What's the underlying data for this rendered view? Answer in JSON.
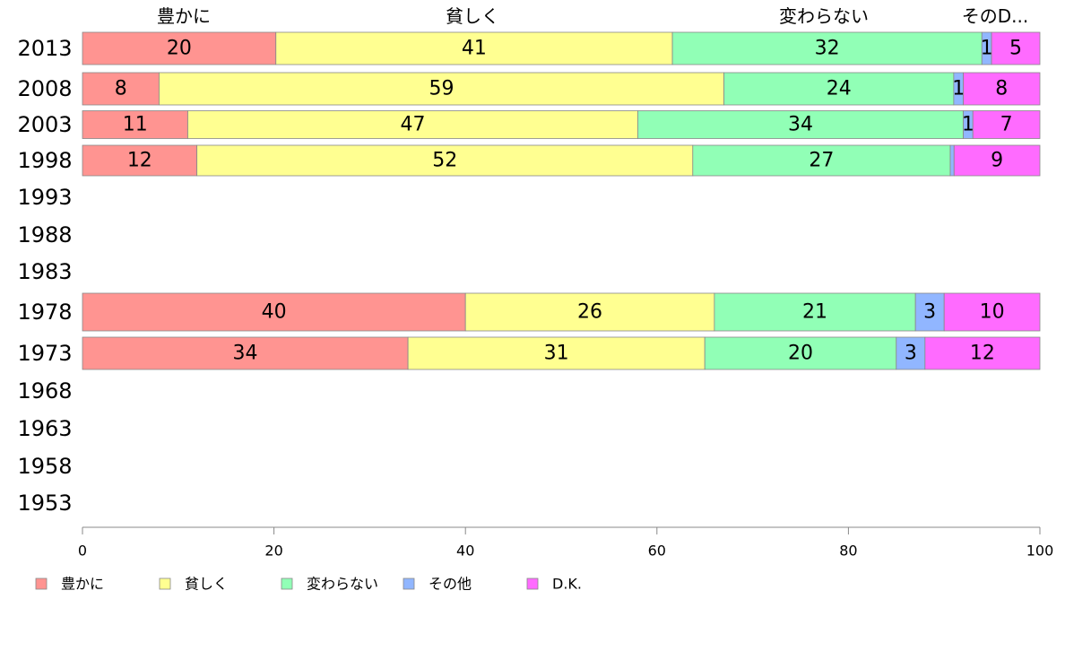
{
  "chart_data": {
    "type": "bar",
    "orientation": "horizontal",
    "stacked": true,
    "categories": [
      "2013",
      "2008",
      "2003",
      "1998",
      "1993",
      "1988",
      "1983",
      "1978",
      "1973",
      "1968",
      "1963",
      "1958",
      "1953"
    ],
    "series": [
      {
        "name": "豊かに",
        "color": "#ff9491",
        "values": [
          20,
          8,
          11,
          12,
          null,
          null,
          null,
          40,
          34,
          null,
          null,
          null,
          null
        ]
      },
      {
        "name": "貧しく",
        "color": "#ffff91",
        "values": [
          41,
          59,
          47,
          52,
          null,
          null,
          null,
          26,
          31,
          null,
          null,
          null,
          null
        ]
      },
      {
        "name": "変わらない",
        "color": "#91ffb6",
        "values": [
          32,
          24,
          34,
          27,
          null,
          null,
          null,
          21,
          20,
          null,
          null,
          null,
          null
        ]
      },
      {
        "name": "その他",
        "color": "#91b6ff",
        "values": [
          1,
          1,
          1,
          0.4,
          null,
          null,
          null,
          3,
          3,
          null,
          null,
          null,
          null
        ]
      },
      {
        "name": "D.K.",
        "color": "#ff6bff",
        "values": [
          5,
          8,
          7,
          9,
          null,
          null,
          null,
          10,
          12,
          null,
          null,
          null,
          null
        ]
      }
    ],
    "value_labels": [
      [
        "20",
        "41",
        "32",
        "1",
        "5"
      ],
      [
        "8",
        "59",
        "24",
        "1",
        "8"
      ],
      [
        "11",
        "47",
        "34",
        "1",
        "7"
      ],
      [
        "12",
        "52",
        "27",
        "",
        "9"
      ],
      null,
      null,
      null,
      [
        "40",
        "26",
        "21",
        "3",
        "10"
      ],
      [
        "34",
        "31",
        "20",
        "3",
        "12"
      ],
      null,
      null,
      null,
      null
    ],
    "top_labels": [
      "豊かに",
      "貧しく",
      "変わらない",
      "そのD..."
    ],
    "xlim": [
      0,
      100
    ],
    "xticks": [
      "0",
      "20",
      "40",
      "60",
      "80",
      "100"
    ],
    "grid": false,
    "legend": {
      "position": "bottom-left",
      "entries": [
        "豊かに",
        "貧しく",
        "変わらない",
        "その他",
        "D.K."
      ]
    }
  }
}
